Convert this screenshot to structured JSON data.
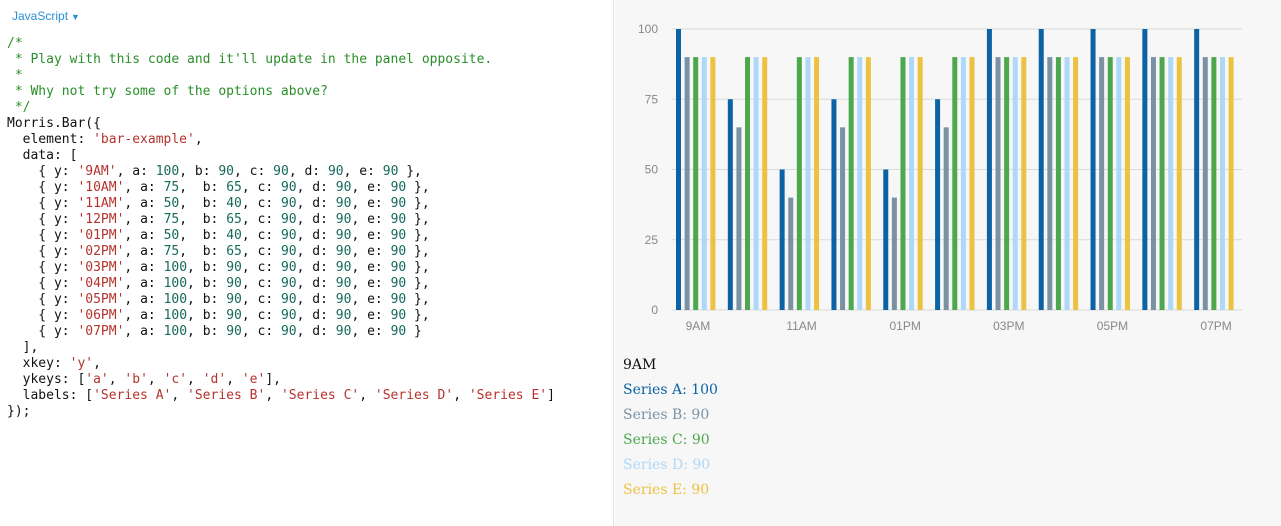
{
  "editor": {
    "language_label": "JavaScript",
    "caret": "▼",
    "code_lines": [
      [
        {
          "t": "/*",
          "k": "c"
        }
      ],
      [
        {
          "t": " * Play with this code and it'll update in the panel opposite.",
          "k": "c"
        }
      ],
      [
        {
          "t": " *",
          "k": "c"
        }
      ],
      [
        {
          "t": " * Why not try some of the options above?",
          "k": "c"
        }
      ],
      [
        {
          "t": " */",
          "k": "c"
        }
      ],
      [
        {
          "t": "Morris.Bar({"
        }
      ],
      [
        {
          "t": "  element: "
        },
        {
          "t": "'bar-example'",
          "k": "s"
        },
        {
          "t": ","
        }
      ],
      [
        {
          "t": "  data: ["
        }
      ],
      [
        {
          "t": "    { y: "
        },
        {
          "t": "'9AM'",
          "k": "s"
        },
        {
          "t": ", a: "
        },
        {
          "t": "100",
          "k": "n"
        },
        {
          "t": ", b: "
        },
        {
          "t": "90",
          "k": "n"
        },
        {
          "t": ", c: "
        },
        {
          "t": "90",
          "k": "n"
        },
        {
          "t": ", d: "
        },
        {
          "t": "90",
          "k": "n"
        },
        {
          "t": ", e: "
        },
        {
          "t": "90",
          "k": "n"
        },
        {
          "t": " },"
        }
      ],
      [
        {
          "t": "    { y: "
        },
        {
          "t": "'10AM'",
          "k": "s"
        },
        {
          "t": ", a: "
        },
        {
          "t": "75",
          "k": "n"
        },
        {
          "t": ",  b: "
        },
        {
          "t": "65",
          "k": "n"
        },
        {
          "t": ", c: "
        },
        {
          "t": "90",
          "k": "n"
        },
        {
          "t": ", d: "
        },
        {
          "t": "90",
          "k": "n"
        },
        {
          "t": ", e: "
        },
        {
          "t": "90",
          "k": "n"
        },
        {
          "t": " },"
        }
      ],
      [
        {
          "t": "    { y: "
        },
        {
          "t": "'11AM'",
          "k": "s"
        },
        {
          "t": ", a: "
        },
        {
          "t": "50",
          "k": "n"
        },
        {
          "t": ",  b: "
        },
        {
          "t": "40",
          "k": "n"
        },
        {
          "t": ", c: "
        },
        {
          "t": "90",
          "k": "n"
        },
        {
          "t": ", d: "
        },
        {
          "t": "90",
          "k": "n"
        },
        {
          "t": ", e: "
        },
        {
          "t": "90",
          "k": "n"
        },
        {
          "t": " },"
        }
      ],
      [
        {
          "t": "    { y: "
        },
        {
          "t": "'12PM'",
          "k": "s"
        },
        {
          "t": ", a: "
        },
        {
          "t": "75",
          "k": "n"
        },
        {
          "t": ",  b: "
        },
        {
          "t": "65",
          "k": "n"
        },
        {
          "t": ", c: "
        },
        {
          "t": "90",
          "k": "n"
        },
        {
          "t": ", d: "
        },
        {
          "t": "90",
          "k": "n"
        },
        {
          "t": ", e: "
        },
        {
          "t": "90",
          "k": "n"
        },
        {
          "t": " },"
        }
      ],
      [
        {
          "t": "    { y: "
        },
        {
          "t": "'01PM'",
          "k": "s"
        },
        {
          "t": ", a: "
        },
        {
          "t": "50",
          "k": "n"
        },
        {
          "t": ",  b: "
        },
        {
          "t": "40",
          "k": "n"
        },
        {
          "t": ", c: "
        },
        {
          "t": "90",
          "k": "n"
        },
        {
          "t": ", d: "
        },
        {
          "t": "90",
          "k": "n"
        },
        {
          "t": ", e: "
        },
        {
          "t": "90",
          "k": "n"
        },
        {
          "t": " },"
        }
      ],
      [
        {
          "t": "    { y: "
        },
        {
          "t": "'02PM'",
          "k": "s"
        },
        {
          "t": ", a: "
        },
        {
          "t": "75",
          "k": "n"
        },
        {
          "t": ",  b: "
        },
        {
          "t": "65",
          "k": "n"
        },
        {
          "t": ", c: "
        },
        {
          "t": "90",
          "k": "n"
        },
        {
          "t": ", d: "
        },
        {
          "t": "90",
          "k": "n"
        },
        {
          "t": ", e: "
        },
        {
          "t": "90",
          "k": "n"
        },
        {
          "t": " },"
        }
      ],
      [
        {
          "t": "    { y: "
        },
        {
          "t": "'03PM'",
          "k": "s"
        },
        {
          "t": ", a: "
        },
        {
          "t": "100",
          "k": "n"
        },
        {
          "t": ", b: "
        },
        {
          "t": "90",
          "k": "n"
        },
        {
          "t": ", c: "
        },
        {
          "t": "90",
          "k": "n"
        },
        {
          "t": ", d: "
        },
        {
          "t": "90",
          "k": "n"
        },
        {
          "t": ", e: "
        },
        {
          "t": "90",
          "k": "n"
        },
        {
          "t": " },"
        }
      ],
      [
        {
          "t": "    { y: "
        },
        {
          "t": "'04PM'",
          "k": "s"
        },
        {
          "t": ", a: "
        },
        {
          "t": "100",
          "k": "n"
        },
        {
          "t": ", b: "
        },
        {
          "t": "90",
          "k": "n"
        },
        {
          "t": ", c: "
        },
        {
          "t": "90",
          "k": "n"
        },
        {
          "t": ", d: "
        },
        {
          "t": "90",
          "k": "n"
        },
        {
          "t": ", e: "
        },
        {
          "t": "90",
          "k": "n"
        },
        {
          "t": " },"
        }
      ],
      [
        {
          "t": "    { y: "
        },
        {
          "t": "'05PM'",
          "k": "s"
        },
        {
          "t": ", a: "
        },
        {
          "t": "100",
          "k": "n"
        },
        {
          "t": ", b: "
        },
        {
          "t": "90",
          "k": "n"
        },
        {
          "t": ", c: "
        },
        {
          "t": "90",
          "k": "n"
        },
        {
          "t": ", d: "
        },
        {
          "t": "90",
          "k": "n"
        },
        {
          "t": ", e: "
        },
        {
          "t": "90",
          "k": "n"
        },
        {
          "t": " },"
        }
      ],
      [
        {
          "t": "    { y: "
        },
        {
          "t": "'06PM'",
          "k": "s"
        },
        {
          "t": ", a: "
        },
        {
          "t": "100",
          "k": "n"
        },
        {
          "t": ", b: "
        },
        {
          "t": "90",
          "k": "n"
        },
        {
          "t": ", c: "
        },
        {
          "t": "90",
          "k": "n"
        },
        {
          "t": ", d: "
        },
        {
          "t": "90",
          "k": "n"
        },
        {
          "t": ", e: "
        },
        {
          "t": "90",
          "k": "n"
        },
        {
          "t": " },"
        }
      ],
      [
        {
          "t": "    { y: "
        },
        {
          "t": "'07PM'",
          "k": "s"
        },
        {
          "t": ", a: "
        },
        {
          "t": "100",
          "k": "n"
        },
        {
          "t": ", b: "
        },
        {
          "t": "90",
          "k": "n"
        },
        {
          "t": ", c: "
        },
        {
          "t": "90",
          "k": "n"
        },
        {
          "t": ", d: "
        },
        {
          "t": "90",
          "k": "n"
        },
        {
          "t": ", e: "
        },
        {
          "t": "90",
          "k": "n"
        },
        {
          "t": " }"
        }
      ],
      [
        {
          "t": "  ],"
        }
      ],
      [
        {
          "t": "  xkey: "
        },
        {
          "t": "'y'",
          "k": "s"
        },
        {
          "t": ","
        }
      ],
      [
        {
          "t": "  ykeys: ["
        },
        {
          "t": "'a'",
          "k": "s"
        },
        {
          "t": ", "
        },
        {
          "t": "'b'",
          "k": "s"
        },
        {
          "t": ", "
        },
        {
          "t": "'c'",
          "k": "s"
        },
        {
          "t": ", "
        },
        {
          "t": "'d'",
          "k": "s"
        },
        {
          "t": ", "
        },
        {
          "t": "'e'",
          "k": "s"
        },
        {
          "t": "],"
        }
      ],
      [
        {
          "t": "  labels: ["
        },
        {
          "t": "'Series A'",
          "k": "s"
        },
        {
          "t": ", "
        },
        {
          "t": "'Series B'",
          "k": "s"
        },
        {
          "t": ", "
        },
        {
          "t": "'Series C'",
          "k": "s"
        },
        {
          "t": ", "
        },
        {
          "t": "'Series D'",
          "k": "s"
        },
        {
          "t": ", "
        },
        {
          "t": "'Series E'",
          "k": "s"
        },
        {
          "t": "]"
        }
      ],
      [
        {
          "t": "});"
        }
      ]
    ]
  },
  "chart_data": {
    "type": "bar",
    "categories": [
      "9AM",
      "10AM",
      "11AM",
      "12PM",
      "01PM",
      "02PM",
      "03PM",
      "04PM",
      "05PM",
      "06PM",
      "07PM"
    ],
    "x_tick_labels": [
      "9AM",
      "",
      "11AM",
      "",
      "01PM",
      "",
      "03PM",
      "",
      "05PM",
      "",
      "07PM"
    ],
    "y_ticks": [
      "100",
      "75",
      "50",
      "25",
      "0"
    ],
    "ylim": [
      0,
      100
    ],
    "grid": true,
    "series": [
      {
        "name": "Series A",
        "color": "#0b62a4",
        "values": [
          100,
          75,
          50,
          75,
          50,
          75,
          100,
          100,
          100,
          100,
          100
        ]
      },
      {
        "name": "Series B",
        "color": "#7a92a3",
        "values": [
          90,
          65,
          40,
          65,
          40,
          65,
          90,
          90,
          90,
          90,
          90
        ]
      },
      {
        "name": "Series C",
        "color": "#4da74d",
        "values": [
          90,
          90,
          90,
          90,
          90,
          90,
          90,
          90,
          90,
          90,
          90
        ]
      },
      {
        "name": "Series D",
        "color": "#afd8f8",
        "values": [
          90,
          90,
          90,
          90,
          90,
          90,
          90,
          90,
          90,
          90,
          90
        ]
      },
      {
        "name": "Series E",
        "color": "#edc240",
        "values": [
          90,
          90,
          90,
          90,
          90,
          90,
          90,
          90,
          90,
          90,
          90
        ]
      }
    ]
  },
  "hover": {
    "title": "9AM",
    "items": [
      {
        "label": "Series A: 100",
        "color": "#0b62a4"
      },
      {
        "label": "Series B: 90",
        "color": "#7a92a3"
      },
      {
        "label": "Series C: 90",
        "color": "#4da74d"
      },
      {
        "label": "Series D: 90",
        "color": "#afd8f8"
      },
      {
        "label": "Series E: 90",
        "color": "#edc240"
      }
    ]
  }
}
